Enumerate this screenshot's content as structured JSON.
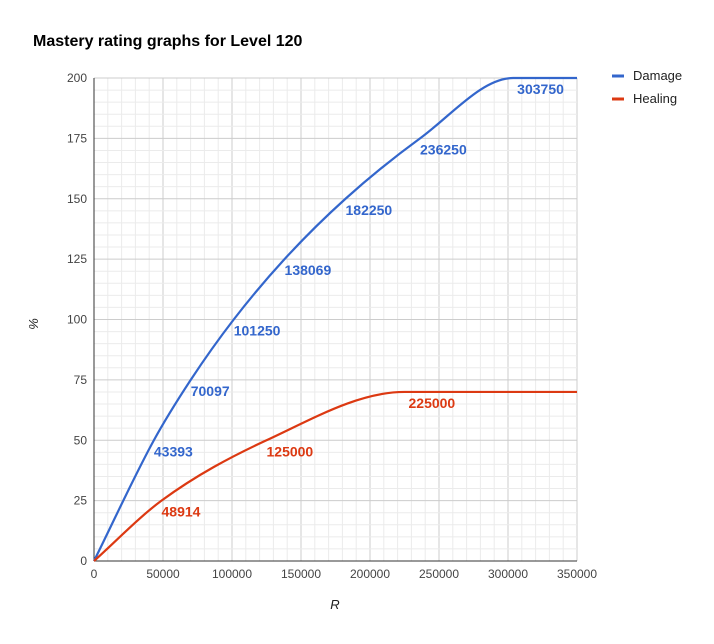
{
  "chart_data": {
    "type": "line",
    "title": "Mastery rating graphs for Level 120",
    "xlabel": "R",
    "ylabel": "%",
    "xlim": [
      0,
      350000
    ],
    "ylim": [
      0,
      200
    ],
    "x_ticks": [
      "0",
      "50000",
      "100000",
      "150000",
      "200000",
      "250000",
      "300000",
      "350000"
    ],
    "y_ticks": [
      "0",
      "25",
      "50",
      "75",
      "100",
      "125",
      "150",
      "175",
      "200"
    ],
    "grid": true,
    "legend_position": "top-right",
    "series": [
      {
        "name": "Damage",
        "color": "#3366cc",
        "x": [
          0,
          43393,
          70097,
          101250,
          138069,
          182250,
          236250,
          303750,
          350000
        ],
        "y": [
          0,
          50,
          75,
          100,
          125,
          150,
          175,
          200,
          200
        ],
        "labels": [
          "43393",
          "70097",
          "101250",
          "138069",
          "182250",
          "236250",
          "303750"
        ]
      },
      {
        "name": "Healing",
        "color": "#dc3912",
        "x": [
          0,
          48914,
          125000,
          225000,
          350000
        ],
        "y": [
          0,
          25,
          50,
          70,
          70
        ],
        "labels": [
          "48914",
          "125000",
          "225000"
        ]
      }
    ]
  }
}
